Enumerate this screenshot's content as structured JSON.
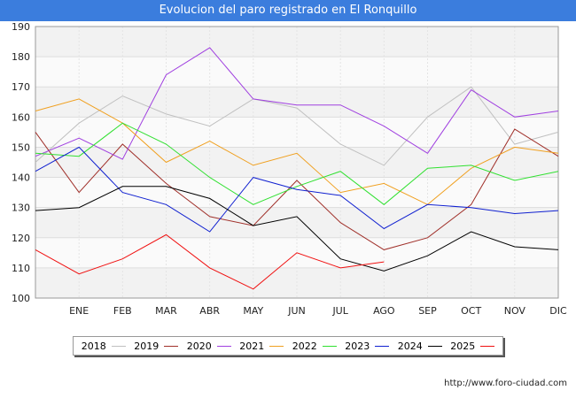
{
  "chart_data": {
    "type": "line",
    "title": "Evolucion del paro registrado en El Ronquillo",
    "categories": [
      "",
      "ENE",
      "FEB",
      "MAR",
      "ABR",
      "MAY",
      "JUN",
      "JUL",
      "AGO",
      "SEP",
      "OCT",
      "NOV",
      "DIC"
    ],
    "ylim": [
      100,
      190
    ],
    "yticks": [
      "100",
      "110",
      "120",
      "130",
      "140",
      "150",
      "160",
      "170",
      "180",
      "190"
    ],
    "grid": true,
    "legend_position": "bottom",
    "series": [
      {
        "name": "2018",
        "color": "#c0c0c0",
        "values": [
          145,
          158,
          167,
          161,
          157,
          166,
          163,
          151,
          144,
          160,
          170,
          151,
          155
        ]
      },
      {
        "name": "2019",
        "color": "#a0302a",
        "values": [
          155,
          135,
          151,
          138,
          127,
          124,
          139,
          125,
          116,
          120,
          131,
          156,
          147
        ]
      },
      {
        "name": "2020",
        "color": "#a040e0",
        "values": [
          147,
          153,
          146,
          174,
          183,
          166,
          164,
          164,
          157,
          148,
          169,
          160,
          162
        ]
      },
      {
        "name": "2021",
        "color": "#f0a020",
        "values": [
          162,
          166,
          158,
          145,
          152,
          144,
          148,
          135,
          138,
          131,
          143,
          150,
          148
        ]
      },
      {
        "name": "2022",
        "color": "#30e030",
        "values": [
          148,
          147,
          158,
          151,
          140,
          131,
          137,
          142,
          131,
          143,
          144,
          139,
          142
        ]
      },
      {
        "name": "2023",
        "color": "#1020d0",
        "values": [
          142,
          150,
          135,
          131,
          122,
          140,
          136,
          134,
          123,
          131,
          130,
          128,
          129
        ]
      },
      {
        "name": "2024",
        "color": "#000000",
        "values": [
          129,
          130,
          137,
          137,
          133,
          124,
          127,
          113,
          109,
          114,
          122,
          117,
          116
        ]
      },
      {
        "name": "2025",
        "color": "#f01010",
        "values": [
          116,
          108,
          113,
          121,
          110,
          103,
          115,
          110,
          112,
          null,
          null,
          null,
          null
        ]
      }
    ]
  },
  "source": "http://www.foro-ciudad.com"
}
